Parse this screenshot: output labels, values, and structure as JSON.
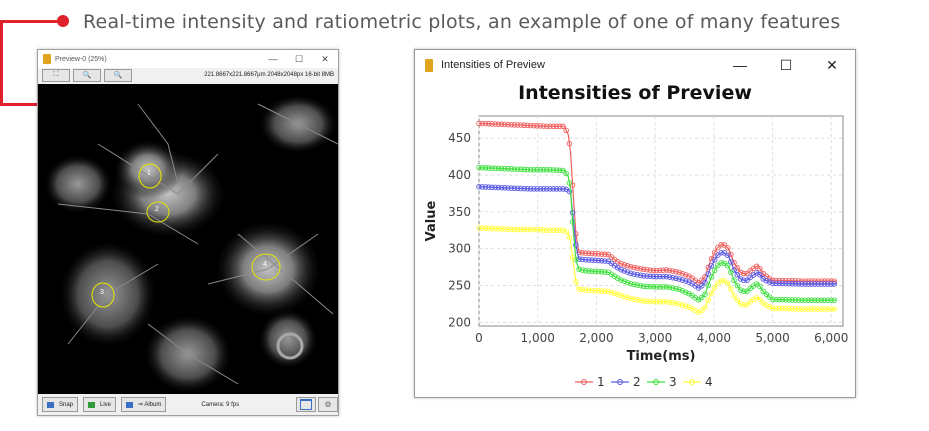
{
  "caption": "Real-time intensity and ratiometric plots, an example of one of many features",
  "preview": {
    "title": "Preview-0 (25%)",
    "minimize": "—",
    "maximize": "☐",
    "close": "✕",
    "tool_icons": [
      "fit-to-window-icon",
      "zoom-in-icon",
      "zoom-out-icon"
    ],
    "info": "221.8667x221.8667μm  2048x2048px  16-bit 8MB",
    "roi_labels": [
      "1",
      "2",
      "3",
      "4"
    ],
    "snap_label": "Snap",
    "live_label": "Live",
    "album_label": "⇒ Album",
    "camera_status": "Camera: 9 fps"
  },
  "intensities_window": {
    "title": "Intensities of Preview",
    "minimize": "—",
    "maximize": "☐",
    "close": "✕"
  },
  "chart_data": {
    "type": "line",
    "title": "Intensities of Preview",
    "xlabel": "Time(ms)",
    "ylabel": "Value",
    "xlim": [
      0,
      6200
    ],
    "ylim": [
      195,
      480
    ],
    "xticks": [
      0,
      1000,
      2000,
      3000,
      4000,
      5000,
      6000
    ],
    "xtick_labels": [
      "0",
      "1,000",
      "2,000",
      "3,000",
      "4,000",
      "5,000",
      "6,000"
    ],
    "yticks": [
      200,
      250,
      300,
      350,
      400,
      450
    ],
    "grid": true,
    "legend_position": "bottom",
    "series": [
      {
        "name": "1",
        "color": "#f06060",
        "points": [
          [
            0,
            470
          ],
          [
            300,
            469
          ],
          [
            600,
            468
          ],
          [
            900,
            467
          ],
          [
            1200,
            466
          ],
          [
            1450,
            466
          ],
          [
            1520,
            455
          ],
          [
            1560,
            430
          ],
          [
            1600,
            380
          ],
          [
            1650,
            320
          ],
          [
            1700,
            295
          ],
          [
            1800,
            294
          ],
          [
            2000,
            293
          ],
          [
            2200,
            292
          ],
          [
            2400,
            280
          ],
          [
            2600,
            275
          ],
          [
            2800,
            272
          ],
          [
            3000,
            270
          ],
          [
            3200,
            271
          ],
          [
            3400,
            268
          ],
          [
            3600,
            262
          ],
          [
            3750,
            253
          ],
          [
            3850,
            262
          ],
          [
            3950,
            285
          ],
          [
            4050,
            300
          ],
          [
            4150,
            307
          ],
          [
            4250,
            300
          ],
          [
            4350,
            280
          ],
          [
            4450,
            268
          ],
          [
            4550,
            265
          ],
          [
            4650,
            272
          ],
          [
            4750,
            277
          ],
          [
            4850,
            265
          ],
          [
            5000,
            257
          ],
          [
            5500,
            256
          ],
          [
            6000,
            256
          ],
          [
            6100,
            256
          ]
        ]
      },
      {
        "name": "2",
        "color": "#5a5ae6",
        "points": [
          [
            0,
            384
          ],
          [
            300,
            383
          ],
          [
            600,
            382
          ],
          [
            900,
            381
          ],
          [
            1200,
            381
          ],
          [
            1450,
            381
          ],
          [
            1520,
            380
          ],
          [
            1560,
            375
          ],
          [
            1600,
            345
          ],
          [
            1650,
            305
          ],
          [
            1700,
            286
          ],
          [
            1800,
            285
          ],
          [
            2000,
            284
          ],
          [
            2200,
            283
          ],
          [
            2400,
            272
          ],
          [
            2600,
            266
          ],
          [
            2800,
            263
          ],
          [
            3000,
            262
          ],
          [
            3200,
            262
          ],
          [
            3400,
            259
          ],
          [
            3600,
            254
          ],
          [
            3750,
            246
          ],
          [
            3850,
            254
          ],
          [
            3950,
            275
          ],
          [
            4050,
            290
          ],
          [
            4150,
            296
          ],
          [
            4250,
            290
          ],
          [
            4350,
            270
          ],
          [
            4450,
            259
          ],
          [
            4550,
            256
          ],
          [
            4650,
            263
          ],
          [
            4750,
            268
          ],
          [
            4850,
            258
          ],
          [
            5000,
            253
          ],
          [
            5500,
            252
          ],
          [
            6000,
            252
          ],
          [
            6100,
            252
          ]
        ]
      },
      {
        "name": "3",
        "color": "#40e040",
        "points": [
          [
            0,
            410
          ],
          [
            300,
            409
          ],
          [
            600,
            408
          ],
          [
            900,
            407
          ],
          [
            1200,
            407
          ],
          [
            1450,
            406
          ],
          [
            1520,
            398
          ],
          [
            1560,
            380
          ],
          [
            1600,
            330
          ],
          [
            1650,
            285
          ],
          [
            1700,
            272
          ],
          [
            1800,
            270
          ],
          [
            2000,
            269
          ],
          [
            2200,
            268
          ],
          [
            2400,
            258
          ],
          [
            2600,
            252
          ],
          [
            2800,
            249
          ],
          [
            3000,
            248
          ],
          [
            3200,
            248
          ],
          [
            3400,
            245
          ],
          [
            3600,
            238
          ],
          [
            3750,
            230
          ],
          [
            3850,
            238
          ],
          [
            3950,
            260
          ],
          [
            4050,
            276
          ],
          [
            4150,
            282
          ],
          [
            4250,
            276
          ],
          [
            4350,
            256
          ],
          [
            4450,
            244
          ],
          [
            4550,
            241
          ],
          [
            4650,
            248
          ],
          [
            4750,
            253
          ],
          [
            4850,
            241
          ],
          [
            5000,
            231
          ],
          [
            5500,
            230
          ],
          [
            6000,
            230
          ],
          [
            6100,
            230
          ]
        ]
      },
      {
        "name": "4",
        "color": "#ffff40",
        "points": [
          [
            0,
            328
          ],
          [
            300,
            327
          ],
          [
            600,
            326
          ],
          [
            900,
            326
          ],
          [
            1200,
            325
          ],
          [
            1450,
            325
          ],
          [
            1520,
            320
          ],
          [
            1560,
            310
          ],
          [
            1600,
            285
          ],
          [
            1650,
            255
          ],
          [
            1700,
            245
          ],
          [
            1800,
            244
          ],
          [
            2000,
            243
          ],
          [
            2200,
            242
          ],
          [
            2400,
            237
          ],
          [
            2600,
            232
          ],
          [
            2800,
            229
          ],
          [
            3000,
            228
          ],
          [
            3200,
            228
          ],
          [
            3400,
            225
          ],
          [
            3600,
            220
          ],
          [
            3750,
            213
          ],
          [
            3850,
            220
          ],
          [
            3950,
            238
          ],
          [
            4050,
            252
          ],
          [
            4150,
            258
          ],
          [
            4250,
            252
          ],
          [
            4350,
            235
          ],
          [
            4450,
            225
          ],
          [
            4550,
            223
          ],
          [
            4650,
            230
          ],
          [
            4750,
            234
          ],
          [
            4850,
            225
          ],
          [
            5000,
            219
          ],
          [
            5500,
            218
          ],
          [
            6000,
            218
          ],
          [
            6100,
            218
          ]
        ]
      }
    ]
  }
}
